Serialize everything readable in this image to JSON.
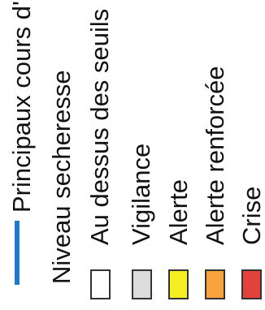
{
  "legend": {
    "river": {
      "label": "Principaux cours d'eau",
      "color": "#1f78c8",
      "icon": "river-line-icon"
    },
    "section_title": "Niveau secheresse",
    "levels": [
      {
        "label": "Au dessus des seuils",
        "color": "#ffffff"
      },
      {
        "label": "Vigilance",
        "color": "#dcdcdc"
      },
      {
        "label": "Alerte",
        "color": "#f5ee22"
      },
      {
        "label": "Alerte renforcée",
        "color": "#f7a23c"
      },
      {
        "label": "Crise",
        "color": "#e3423c"
      }
    ]
  }
}
